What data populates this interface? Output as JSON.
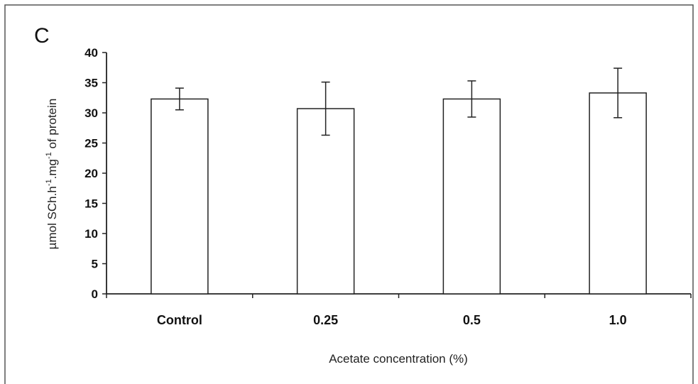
{
  "chart_data": {
    "type": "bar",
    "panel_label": "C",
    "title": "",
    "categories": [
      "Control",
      "0.25",
      "0.5",
      "1.0"
    ],
    "values": [
      32.3,
      30.7,
      32.3,
      33.3
    ],
    "errors": [
      1.8,
      4.4,
      3.0,
      4.1
    ],
    "xlabel": "Acetate concentration (%)",
    "ylabel": {
      "prefix": "µmol SCh.h",
      "sup1": "-1",
      "mid": ".mg",
      "sup2": "-1",
      "suffix": " of protein"
    },
    "ylim": [
      0,
      40
    ],
    "yticks": [
      "0",
      "5",
      "10",
      "15",
      "20",
      "25",
      "30",
      "35",
      "40"
    ],
    "grid": false,
    "legend": "none",
    "colors": {
      "bar_fill": "#ffffff",
      "bar_stroke": "#222222",
      "axis": "#222222",
      "frame": "#555555"
    }
  }
}
